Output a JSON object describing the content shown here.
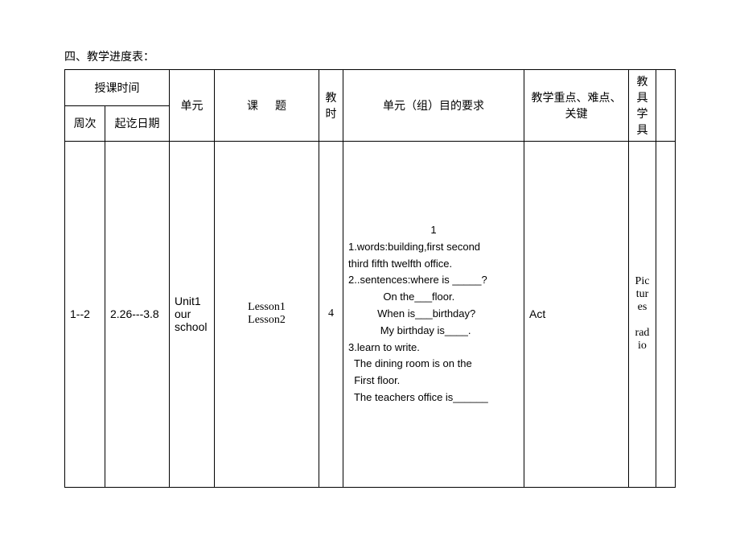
{
  "section_title": "四、教学进度表：",
  "headers": {
    "teaching_time": "授课时间",
    "unit": "单元",
    "topic_label_a": "课",
    "topic_label_b": "题",
    "hours": "教时",
    "requirements": "单元（组）目的要求",
    "key_points": "教学重点、难点、关键",
    "tools": "教具学具",
    "week": "周次",
    "date_range": "起讫日期"
  },
  "row": {
    "week": "1--2",
    "date_range": "2.26---3.8",
    "unit": "Unit1 our school",
    "lesson": "Lesson1\nLesson2",
    "hours": "4",
    "emphasis": "Act",
    "tools": "Pictures\n\nradio",
    "req_center": "1",
    "req_l1": "1.words:building,first   second",
    "req_l2": "third fifth twelfth office.",
    "req_l3": "2..sentences:where is _____?",
    "req_l4": "            On the___floor.",
    "req_l5": "          When is___birthday?",
    "req_l6": "           My birthday is____.",
    "req_l7": "3.learn to write.",
    "req_l8": "  The dining room is on the",
    "req_l9": "  First floor.",
    "req_l10": "  The teachers office is______"
  }
}
